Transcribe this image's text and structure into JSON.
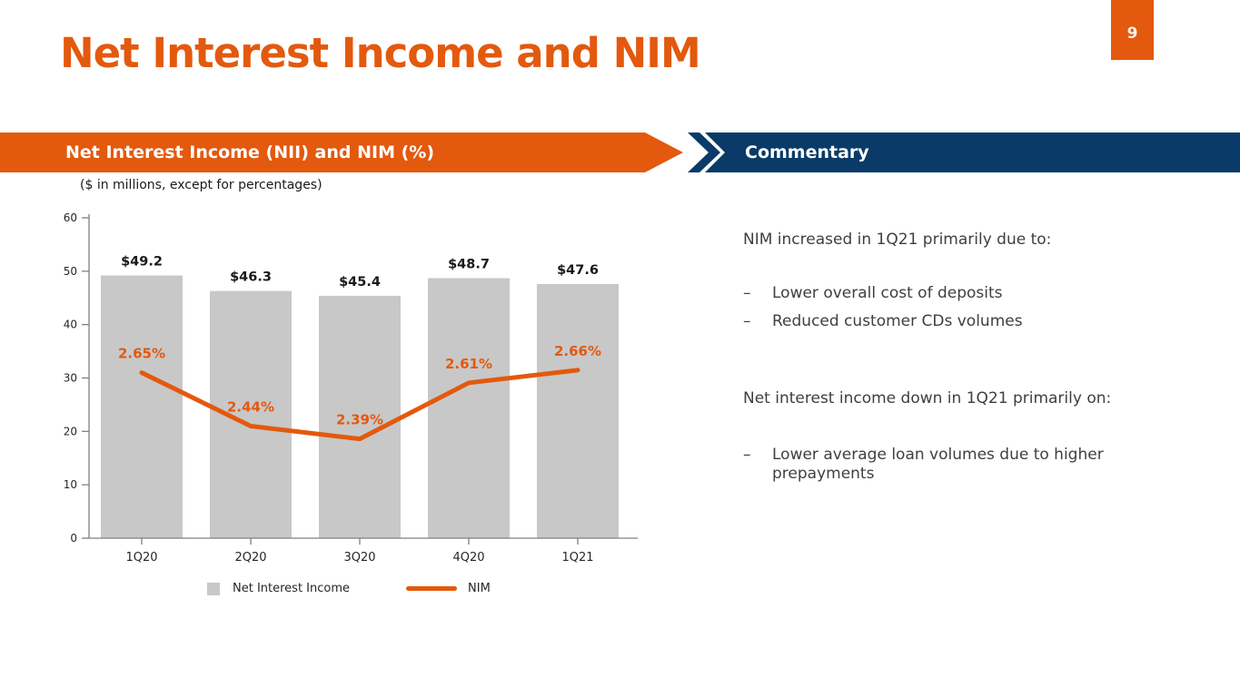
{
  "slide": {
    "title": "Net Interest Income and NIM",
    "page_number": "9",
    "accent_color": "#E3590E",
    "navy_color": "#0A3B68",
    "bullet_char": "–"
  },
  "left_panel": {
    "header": "Net Interest Income (NII) and NIM (%)",
    "subtitle": "($ in millions, except for percentages)"
  },
  "right_panel": {
    "header": "Commentary",
    "sections": [
      {
        "heading": "NIM increased in 1Q21 primarily due to:",
        "bullets": [
          "Lower overall cost of deposits",
          "Reduced customer CDs volumes"
        ]
      },
      {
        "heading": "Net interest income down in 1Q21 primarily on:",
        "bullets": [
          "Lower average loan volumes due to higher prepayments"
        ]
      }
    ]
  },
  "chart_data": {
    "type": "bar",
    "subtype": "bar-line-combo",
    "categories": [
      "1Q20",
      "2Q20",
      "3Q20",
      "4Q20",
      "1Q21"
    ],
    "series": [
      {
        "name": "Net Interest Income",
        "type": "bar",
        "values": [
          49.2,
          46.3,
          45.4,
          48.7,
          47.6
        ],
        "labels": [
          "$49.2",
          "$46.3",
          "$45.4",
          "$48.7",
          "$47.6"
        ],
        "color": "#C8C8C8"
      },
      {
        "name": "NIM",
        "type": "line",
        "values": [
          2.65,
          2.44,
          2.39,
          2.61,
          2.66
        ],
        "labels": [
          "2.65%",
          "2.44%",
          "2.39%",
          "2.61%",
          "2.66%"
        ],
        "color": "#E3590E"
      }
    ],
    "y_axis": {
      "min": 0,
      "max": 60,
      "step": 10,
      "ticks": [
        "0",
        "10",
        "20",
        "30",
        "40",
        "50",
        "60"
      ]
    },
    "grid": false,
    "legend_position": "bottom",
    "title": "Net Interest Income (NII) and NIM (%)",
    "note": "($ in millions, except for percentages)"
  }
}
